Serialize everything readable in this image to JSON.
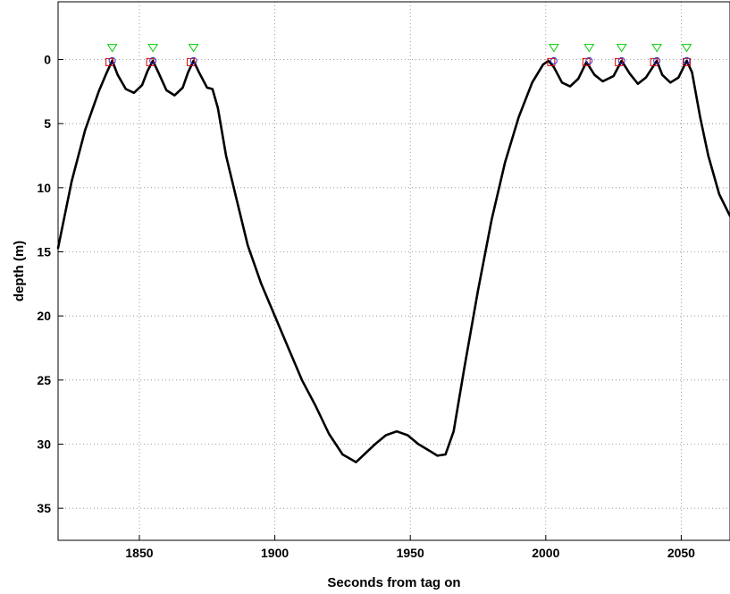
{
  "chart_data": {
    "type": "line",
    "title": "",
    "xlabel": "Seconds from tag on",
    "ylabel": "depth (m)",
    "xlim": [
      1820,
      2068
    ],
    "ylim": [
      -4.5,
      37.5
    ],
    "y_reversed": true,
    "grid": true,
    "legend": "none",
    "xticks": [
      "1850",
      "1900",
      "1950",
      "2000",
      "2050"
    ],
    "yticks": [
      "0",
      "5",
      "10",
      "15",
      "20",
      "25",
      "30",
      "35"
    ],
    "series": [
      {
        "color": "#000000",
        "x": [
          1820,
          1825,
          1830,
          1835,
          1838,
          1840,
          1842,
          1845,
          1848,
          1851,
          1853,
          1855,
          1857,
          1860,
          1863,
          1866,
          1868,
          1870,
          1872,
          1875,
          1877,
          1879,
          1882,
          1886,
          1890,
          1895,
          1900,
          1905,
          1910,
          1915,
          1920,
          1925,
          1930,
          1933,
          1937,
          1941,
          1945,
          1949,
          1953,
          1957,
          1960,
          1963,
          1966,
          1970,
          1975,
          1980,
          1985,
          1990,
          1995,
          1999,
          2001,
          2003,
          2006,
          2009,
          2012,
          2015,
          2018,
          2021,
          2025,
          2028,
          2031,
          2034,
          2037,
          2041,
          2043,
          2046,
          2049,
          2052,
          2054,
          2057,
          2060,
          2064,
          2068
        ],
        "y": [
          14.7,
          9.5,
          5.5,
          2.5,
          1.0,
          0.1,
          1.2,
          2.3,
          2.6,
          2.0,
          0.9,
          0.1,
          1.0,
          2.4,
          2.8,
          2.2,
          1.0,
          0.1,
          1.0,
          2.2,
          2.3,
          3.8,
          7.5,
          11.0,
          14.5,
          17.5,
          20.0,
          22.5,
          25.0,
          27.0,
          29.2,
          30.8,
          31.4,
          30.8,
          30.0,
          29.3,
          29.0,
          29.3,
          30.0,
          30.5,
          30.9,
          30.8,
          29.0,
          24.0,
          18.0,
          12.5,
          8.0,
          4.5,
          1.8,
          0.4,
          0.1,
          0.6,
          1.8,
          2.1,
          1.5,
          0.2,
          1.2,
          1.7,
          1.3,
          0.1,
          1.1,
          1.9,
          1.4,
          0.1,
          1.2,
          1.8,
          1.4,
          0.1,
          1.0,
          4.5,
          7.5,
          10.5,
          12.2
        ]
      }
    ],
    "markers": {
      "green_triangles": {
        "color": "#00cc00",
        "x": [
          1840,
          1855,
          1870,
          2003,
          2016,
          2028,
          2041,
          2052
        ],
        "y": [
          -0.9,
          -0.9,
          -0.9,
          -0.9,
          -0.9,
          -0.9,
          -0.9,
          -0.9
        ]
      },
      "red_squares": {
        "color": "#dd0000",
        "x": [
          1839,
          1854,
          1869,
          2002,
          2015,
          2027,
          2040,
          2052
        ],
        "y": [
          0.2,
          0.2,
          0.2,
          0.2,
          0.2,
          0.2,
          0.2,
          0.2
        ]
      },
      "blue_circles": {
        "color": "#3333cc",
        "x": [
          1840,
          1855,
          1870,
          2003,
          2016,
          2028,
          2041,
          2052
        ],
        "y": [
          0.1,
          0.1,
          0.1,
          0.1,
          0.1,
          0.1,
          0.1,
          0.1
        ]
      }
    }
  }
}
